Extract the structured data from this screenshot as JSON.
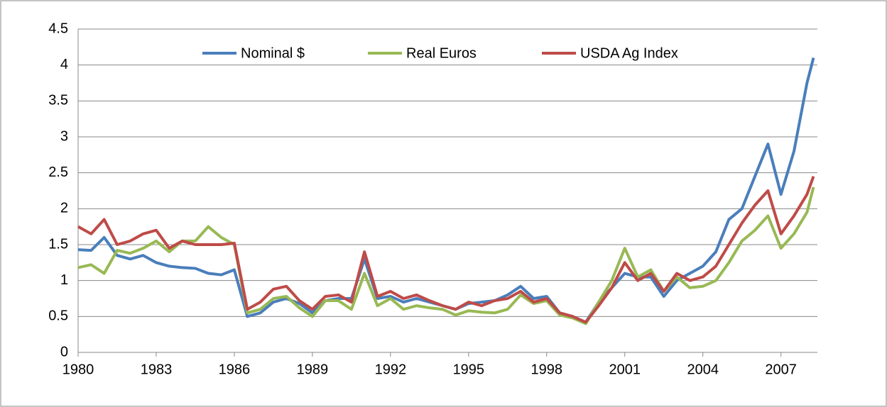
{
  "chart_data": {
    "type": "line",
    "x": [
      1980,
      1980.5,
      1981,
      1981.5,
      1982,
      1982.5,
      1983,
      1983.5,
      1984,
      1984.5,
      1985,
      1985.5,
      1986,
      1986.5,
      1987,
      1987.5,
      1988,
      1988.5,
      1989,
      1989.5,
      1990,
      1990.5,
      1991,
      1991.5,
      1992,
      1992.5,
      1993,
      1993.5,
      1994,
      1994.5,
      1995,
      1995.5,
      1996,
      1996.5,
      1997,
      1997.5,
      1998,
      1998.5,
      1999,
      1999.5,
      2000,
      2000.5,
      2001,
      2001.5,
      2002,
      2002.5,
      2003,
      2003.5,
      2004,
      2004.5,
      2005,
      2005.5,
      2006,
      2006.5,
      2007,
      2007.5,
      2008,
      2008.25
    ],
    "series": [
      {
        "name": "Nominal $",
        "color": "#4a7ebb",
        "values": [
          1.43,
          1.42,
          1.6,
          1.35,
          1.3,
          1.35,
          1.25,
          1.2,
          1.18,
          1.17,
          1.1,
          1.08,
          1.15,
          0.5,
          0.55,
          0.7,
          0.75,
          0.68,
          0.55,
          0.72,
          0.75,
          0.75,
          1.3,
          0.75,
          0.78,
          0.7,
          0.75,
          0.7,
          0.65,
          0.6,
          0.68,
          0.7,
          0.72,
          0.8,
          0.92,
          0.75,
          0.78,
          0.55,
          0.5,
          0.42,
          0.7,
          0.9,
          1.1,
          1.05,
          1.05,
          0.78,
          1.0,
          1.1,
          1.2,
          1.4,
          1.85,
          2.0,
          2.45,
          2.9,
          2.2,
          2.8,
          3.75,
          4.1
        ]
      },
      {
        "name": "Real Euros",
        "color": "#98b954",
        "values": [
          1.18,
          1.22,
          1.1,
          1.42,
          1.38,
          1.45,
          1.55,
          1.4,
          1.55,
          1.55,
          1.75,
          1.6,
          1.5,
          0.55,
          0.6,
          0.75,
          0.78,
          0.62,
          0.5,
          0.72,
          0.72,
          0.6,
          1.1,
          0.65,
          0.75,
          0.6,
          0.65,
          0.62,
          0.6,
          0.52,
          0.58,
          0.56,
          0.55,
          0.6,
          0.8,
          0.68,
          0.72,
          0.52,
          0.48,
          0.4,
          0.7,
          1.0,
          1.45,
          1.05,
          1.15,
          0.85,
          1.05,
          0.9,
          0.92,
          1.0,
          1.25,
          1.55,
          1.7,
          1.9,
          1.45,
          1.65,
          1.95,
          2.3
        ]
      },
      {
        "name": "USDA Ag Index",
        "color": "#be4b48",
        "values": [
          1.75,
          1.65,
          1.85,
          1.5,
          1.55,
          1.65,
          1.7,
          1.45,
          1.55,
          1.5,
          1.5,
          1.5,
          1.52,
          0.6,
          0.7,
          0.88,
          0.92,
          0.72,
          0.6,
          0.78,
          0.8,
          0.7,
          1.4,
          0.78,
          0.85,
          0.75,
          0.8,
          0.72,
          0.65,
          0.6,
          0.7,
          0.65,
          0.72,
          0.75,
          0.85,
          0.7,
          0.75,
          0.55,
          0.5,
          0.42,
          0.65,
          0.9,
          1.25,
          1.0,
          1.1,
          0.85,
          1.1,
          1.0,
          1.05,
          1.2,
          1.5,
          1.8,
          2.05,
          2.25,
          1.65,
          1.9,
          2.2,
          2.45
        ]
      }
    ],
    "xlim": [
      1980,
      2008.4
    ],
    "xticks": [
      1980,
      1983,
      1986,
      1989,
      1992,
      1995,
      1998,
      2001,
      2004,
      2007
    ],
    "ylim": [
      0,
      4.5
    ],
    "yticks": [
      0,
      0.5,
      1,
      1.5,
      2,
      2.5,
      3,
      3.5,
      4,
      4.5
    ],
    "grid": true,
    "legend": "top"
  }
}
